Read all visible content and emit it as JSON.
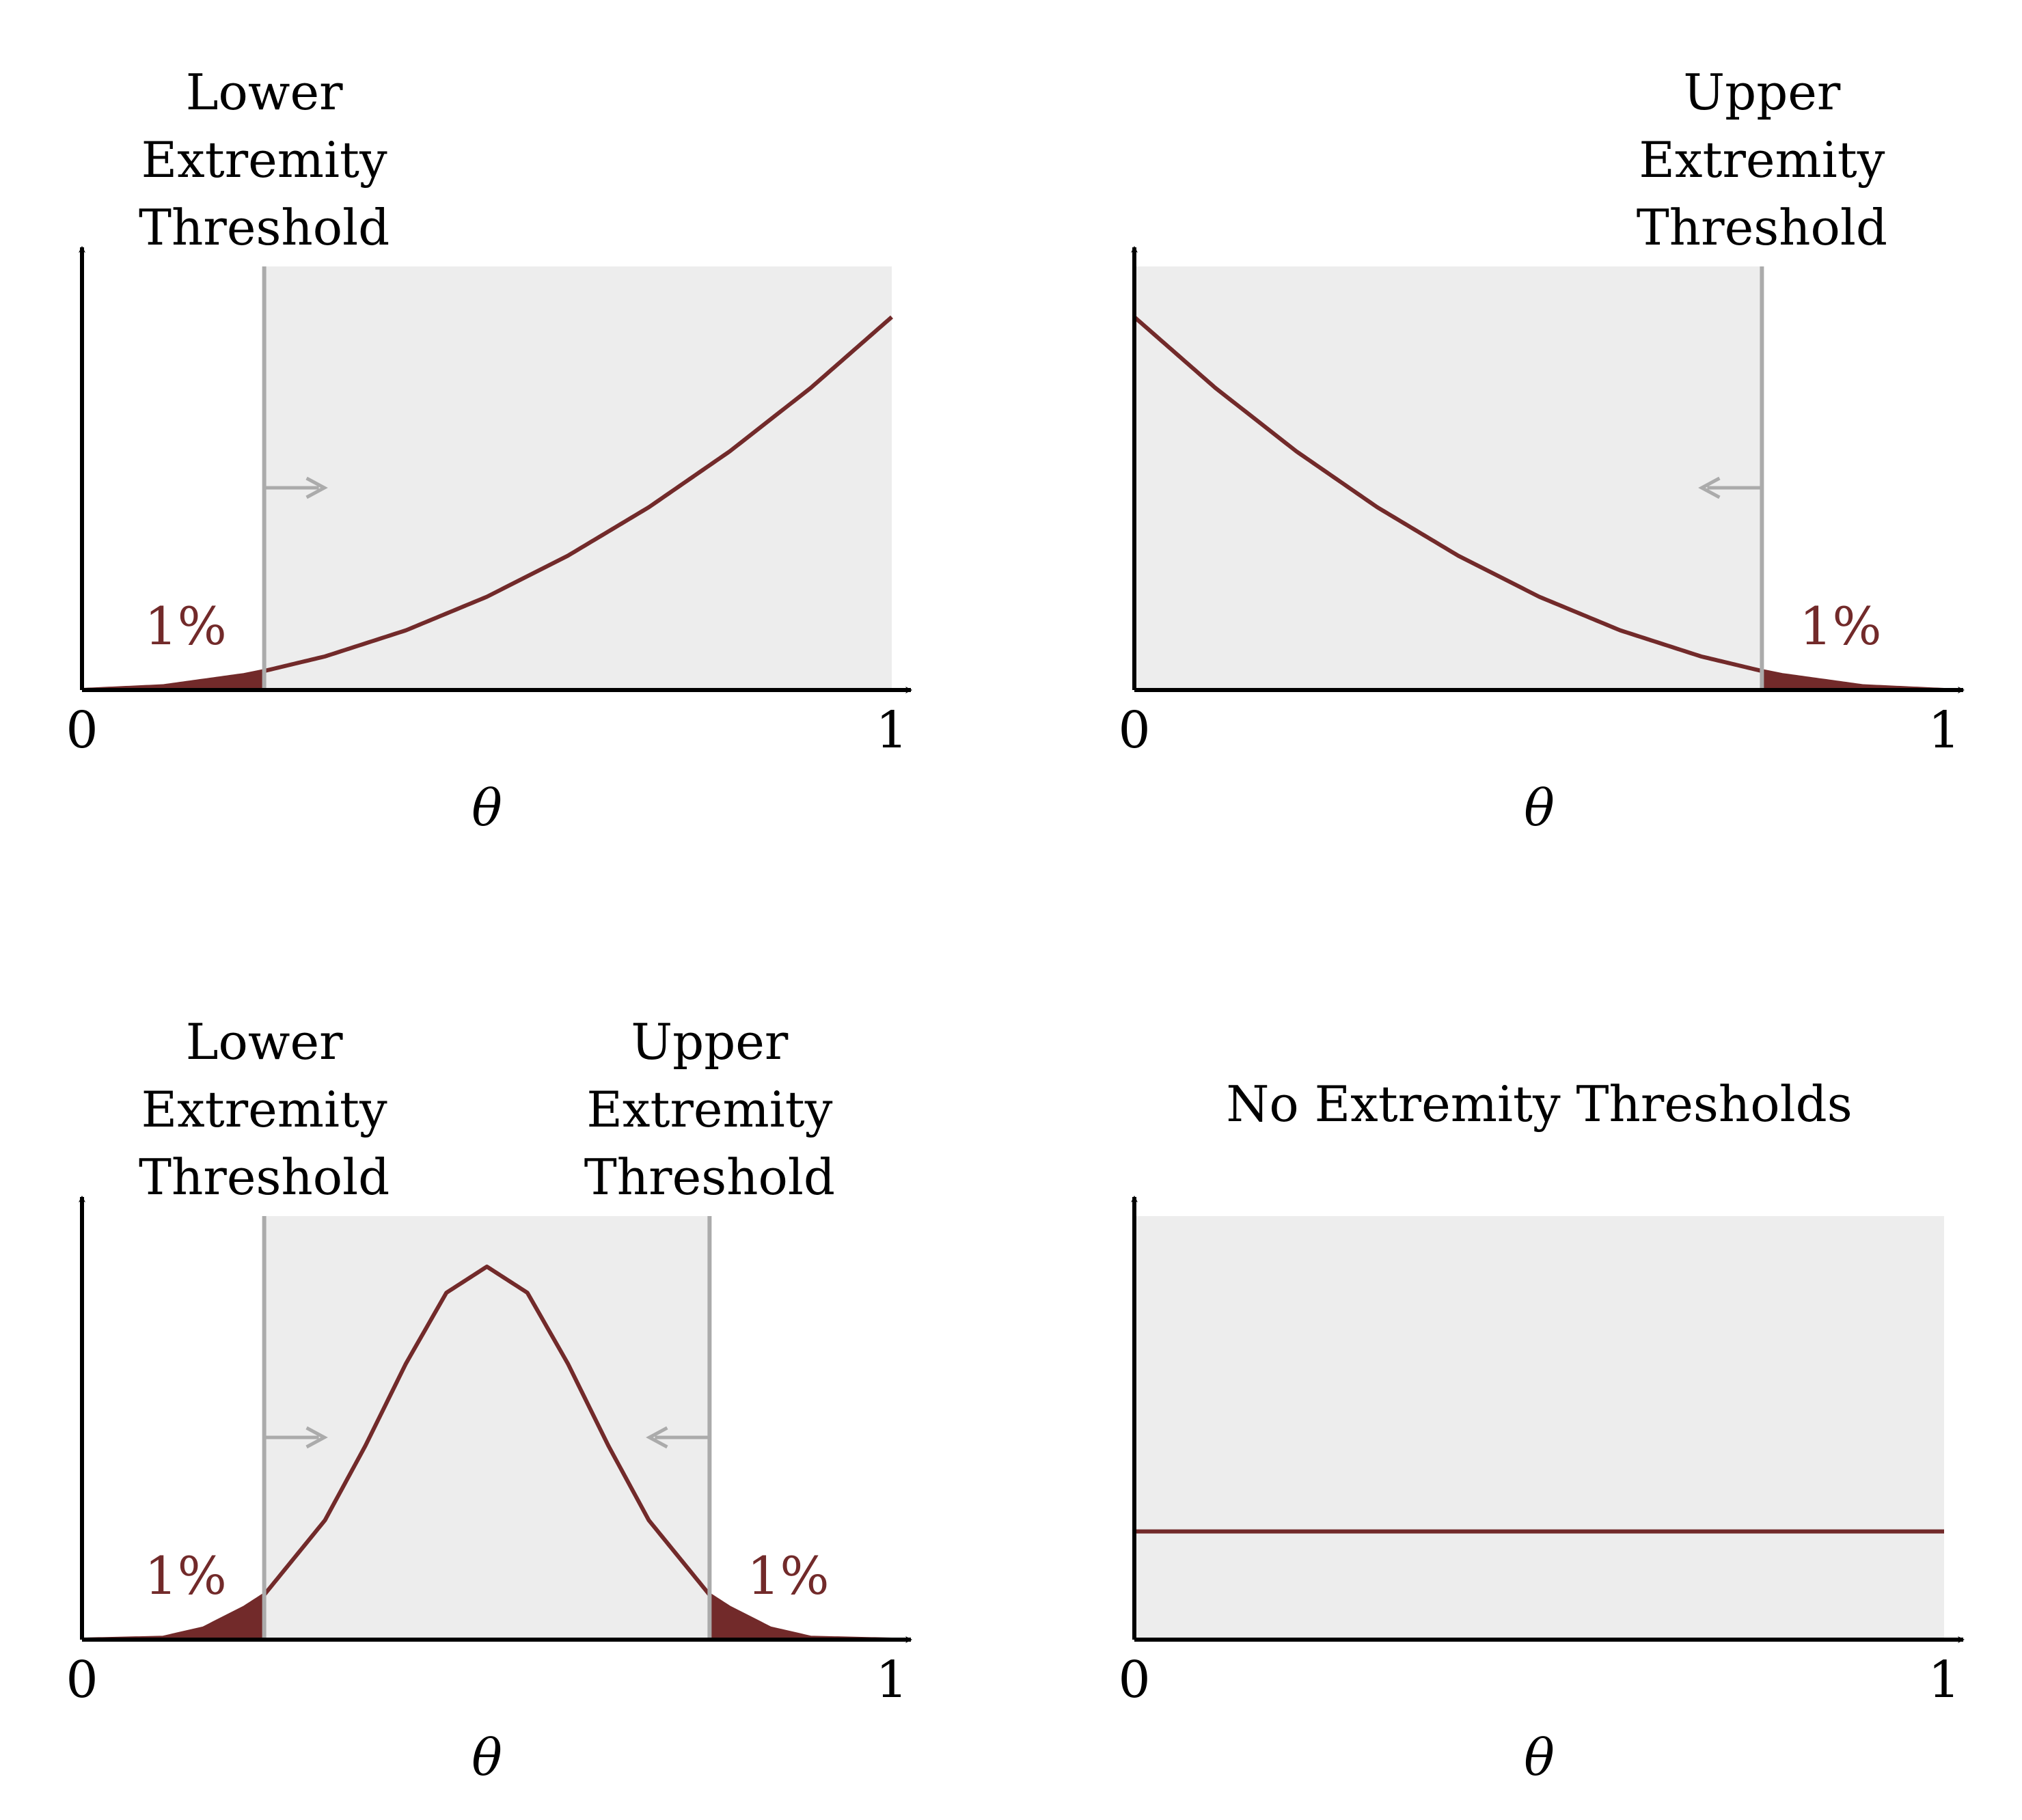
{
  "colors": {
    "curve": "#722a2a",
    "shade": "#ededed",
    "threshold": "#ababab",
    "axis": "#000000"
  },
  "chart_data": [
    {
      "type": "line",
      "xlabel": "θ",
      "x_ticks": [
        "0",
        "1"
      ],
      "xlim": [
        0,
        1
      ],
      "shaded_region": [
        0.225,
        1
      ],
      "thresholds": [
        {
          "x": 0.225,
          "label": [
            "Lower",
            "Extremity",
            "Threshold"
          ],
          "arrow": "right",
          "tail_label": "1%",
          "tail_side": "left"
        }
      ],
      "series": [
        {
          "x": [
            0,
            0.1,
            0.2,
            0.225,
            0.3,
            0.4,
            0.5,
            0.6,
            0.7,
            0.8,
            0.9,
            1.0
          ],
          "y": [
            0,
            0.01,
            0.04,
            0.051,
            0.09,
            0.16,
            0.25,
            0.36,
            0.49,
            0.64,
            0.81,
            1.0
          ]
        }
      ]
    },
    {
      "type": "line",
      "xlabel": "θ",
      "x_ticks": [
        "0",
        "1"
      ],
      "xlim": [
        0,
        1
      ],
      "shaded_region": [
        0,
        0.775
      ],
      "thresholds": [
        {
          "x": 0.775,
          "label": [
            "Upper",
            "Extremity",
            "Threshold"
          ],
          "arrow": "left",
          "tail_label": "1%",
          "tail_side": "right"
        }
      ],
      "series": [
        {
          "x": [
            0,
            0.1,
            0.2,
            0.3,
            0.4,
            0.5,
            0.6,
            0.7,
            0.775,
            0.8,
            0.9,
            1.0
          ],
          "y": [
            1.0,
            0.81,
            0.64,
            0.49,
            0.36,
            0.25,
            0.16,
            0.09,
            0.051,
            0.04,
            0.01,
            0
          ]
        }
      ]
    },
    {
      "type": "line",
      "xlabel": "θ",
      "x_ticks": [
        "0",
        "1"
      ],
      "xlim": [
        0,
        1
      ],
      "shaded_region": [
        0.225,
        0.775
      ],
      "thresholds": [
        {
          "x": 0.225,
          "label": [
            "Lower",
            "Extremity",
            "Threshold"
          ],
          "arrow": "right",
          "tail_label": "1%",
          "tail_side": "left"
        },
        {
          "x": 0.775,
          "label": [
            "Upper",
            "Extremity",
            "Threshold"
          ],
          "arrow": "left",
          "tail_label": "1%",
          "tail_side": "right"
        }
      ],
      "series": [
        {
          "x": [
            0,
            0.1,
            0.15,
            0.2,
            0.225,
            0.3,
            0.35,
            0.4,
            0.45,
            0.5,
            0.55,
            0.6,
            0.65,
            0.7,
            0.775,
            0.8,
            0.85,
            0.9,
            1.0
          ],
          "y": [
            0,
            0.005,
            0.03,
            0.085,
            0.12,
            0.32,
            0.52,
            0.74,
            0.93,
            1.0,
            0.93,
            0.74,
            0.52,
            0.32,
            0.12,
            0.085,
            0.03,
            0.005,
            0
          ]
        }
      ]
    },
    {
      "type": "line",
      "title": "No Extremity Thresholds",
      "xlabel": "θ",
      "x_ticks": [
        "0",
        "1"
      ],
      "xlim": [
        0,
        1
      ],
      "shaded_region": [
        0,
        1
      ],
      "thresholds": [],
      "series": [
        {
          "x": [
            0,
            1
          ],
          "y": [
            0.29,
            0.29
          ]
        }
      ]
    }
  ]
}
